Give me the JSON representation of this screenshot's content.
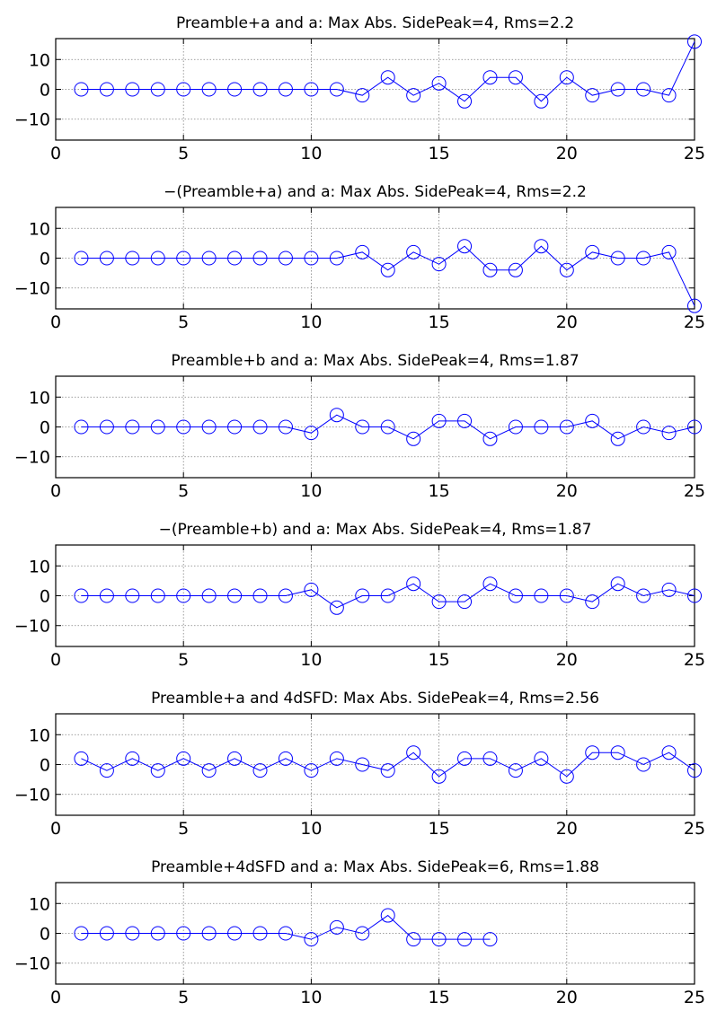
{
  "figure": {
    "background": "#ffffff",
    "line_color": "#0000ff",
    "marker": "circle-open",
    "grid_color": "#808080"
  },
  "chart_data": [
    {
      "type": "line",
      "title": "Preamble+a and a: Max Abs. SidePeak=4, Rms=2.2",
      "xlim": [
        0,
        25
      ],
      "ylim": [
        -17,
        17
      ],
      "xticks": [
        0,
        5,
        10,
        15,
        20,
        25
      ],
      "yticks": [
        -10,
        0,
        10
      ],
      "grid": true,
      "series": [
        {
          "x": [
            1,
            2,
            3,
            4,
            5,
            6,
            7,
            8,
            9,
            10,
            11,
            12,
            13,
            14,
            15,
            16,
            17,
            18,
            19,
            20,
            21,
            22,
            23,
            24,
            25
          ],
          "y": [
            0,
            0,
            0,
            0,
            0,
            0,
            0,
            0,
            0,
            0,
            0,
            -2,
            4,
            -2,
            2,
            -4,
            4,
            4,
            -4,
            4,
            -2,
            0,
            0,
            -2,
            16
          ]
        }
      ]
    },
    {
      "type": "line",
      "title": "−(Preamble+a) and a: Max Abs. SidePeak=4, Rms=2.2",
      "xlim": [
        0,
        25
      ],
      "ylim": [
        -17,
        17
      ],
      "xticks": [
        0,
        5,
        10,
        15,
        20,
        25
      ],
      "yticks": [
        -10,
        0,
        10
      ],
      "grid": true,
      "series": [
        {
          "x": [
            1,
            2,
            3,
            4,
            5,
            6,
            7,
            8,
            9,
            10,
            11,
            12,
            13,
            14,
            15,
            16,
            17,
            18,
            19,
            20,
            21,
            22,
            23,
            24,
            25
          ],
          "y": [
            0,
            0,
            0,
            0,
            0,
            0,
            0,
            0,
            0,
            0,
            0,
            2,
            -4,
            2,
            -2,
            4,
            -4,
            -4,
            4,
            -4,
            2,
            0,
            0,
            2,
            -16
          ]
        }
      ]
    },
    {
      "type": "line",
      "title": "Preamble+b and a: Max Abs. SidePeak=4, Rms=1.87",
      "xlim": [
        0,
        25
      ],
      "ylim": [
        -17,
        17
      ],
      "xticks": [
        0,
        5,
        10,
        15,
        20,
        25
      ],
      "yticks": [
        -10,
        0,
        10
      ],
      "grid": true,
      "series": [
        {
          "x": [
            1,
            2,
            3,
            4,
            5,
            6,
            7,
            8,
            9,
            10,
            11,
            12,
            13,
            14,
            15,
            16,
            17,
            18,
            19,
            20,
            21,
            22,
            23,
            24,
            25
          ],
          "y": [
            0,
            0,
            0,
            0,
            0,
            0,
            0,
            0,
            0,
            -2,
            4,
            0,
            0,
            -4,
            2,
            2,
            -4,
            0,
            0,
            0,
            2,
            -4,
            0,
            -2,
            0
          ]
        }
      ]
    },
    {
      "type": "line",
      "title": "−(Preamble+b) and a: Max Abs. SidePeak=4, Rms=1.87",
      "xlim": [
        0,
        25
      ],
      "ylim": [
        -17,
        17
      ],
      "xticks": [
        0,
        5,
        10,
        15,
        20,
        25
      ],
      "yticks": [
        -10,
        0,
        10
      ],
      "grid": true,
      "series": [
        {
          "x": [
            1,
            2,
            3,
            4,
            5,
            6,
            7,
            8,
            9,
            10,
            11,
            12,
            13,
            14,
            15,
            16,
            17,
            18,
            19,
            20,
            21,
            22,
            23,
            24,
            25
          ],
          "y": [
            0,
            0,
            0,
            0,
            0,
            0,
            0,
            0,
            0,
            2,
            -4,
            0,
            0,
            4,
            -2,
            -2,
            4,
            0,
            0,
            0,
            -2,
            4,
            0,
            2,
            0
          ]
        }
      ]
    },
    {
      "type": "line",
      "title": "Preamble+a and 4dSFD: Max Abs. SidePeak=4, Rms=2.56",
      "xlim": [
        0,
        25
      ],
      "ylim": [
        -17,
        17
      ],
      "xticks": [
        0,
        5,
        10,
        15,
        20,
        25
      ],
      "yticks": [
        -10,
        0,
        10
      ],
      "grid": true,
      "series": [
        {
          "x": [
            1,
            2,
            3,
            4,
            5,
            6,
            7,
            8,
            9,
            10,
            11,
            12,
            13,
            14,
            15,
            16,
            17,
            18,
            19,
            20,
            21,
            22,
            23,
            24,
            25
          ],
          "y": [
            2,
            -2,
            2,
            -2,
            2,
            -2,
            2,
            -2,
            2,
            -2,
            2,
            0,
            -2,
            4,
            -4,
            2,
            2,
            -2,
            2,
            -4,
            4,
            4,
            0,
            4,
            -2
          ]
        }
      ]
    },
    {
      "type": "line",
      "title": "Preamble+4dSFD and a: Max Abs. SidePeak=6, Rms=1.88",
      "xlim": [
        0,
        25
      ],
      "ylim": [
        -17,
        17
      ],
      "xticks": [
        0,
        5,
        10,
        15,
        20,
        25
      ],
      "yticks": [
        -10,
        0,
        10
      ],
      "grid": true,
      "series": [
        {
          "x": [
            1,
            2,
            3,
            4,
            5,
            6,
            7,
            8,
            9,
            10,
            11,
            12,
            13,
            14,
            15,
            16,
            17
          ],
          "y": [
            0,
            0,
            0,
            0,
            0,
            0,
            0,
            0,
            0,
            -2,
            2,
            0,
            6,
            -2,
            -2,
            -2,
            -2
          ]
        }
      ]
    }
  ]
}
